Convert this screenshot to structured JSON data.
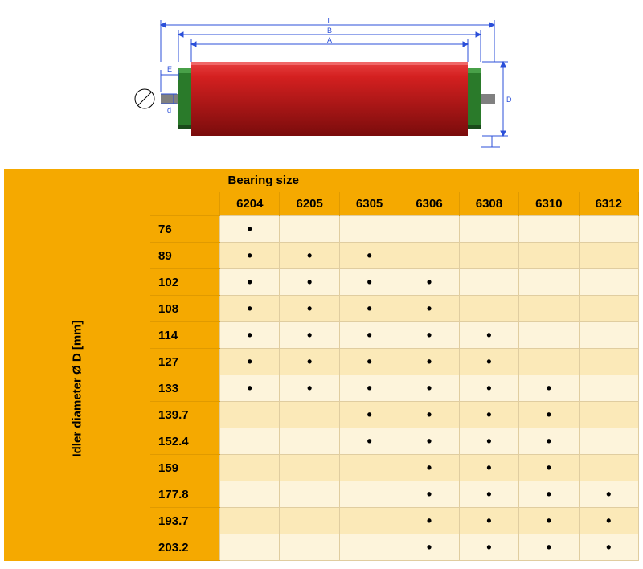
{
  "diagram": {
    "shaft_color": "#2a7a2a",
    "body_color_top": "#d42020",
    "body_color_bottom": "#8a0f0f",
    "endcap_color": "#2a7a2a",
    "dim_line_color": "#2b4fd9",
    "dim_text_color": "#2b4fd9",
    "labels": {
      "L": "L",
      "B": "B",
      "A": "A",
      "D": "D",
      "E": "E",
      "d": "d"
    }
  },
  "table": {
    "side_label": "Idler diameter Ø D [mm]",
    "header_title": "Bearing size",
    "columns": [
      "6204",
      "6205",
      "6305",
      "6306",
      "6308",
      "6310",
      "6312"
    ],
    "rows": [
      {
        "label": "76",
        "dots": [
          true,
          false,
          false,
          false,
          false,
          false,
          false
        ]
      },
      {
        "label": "89",
        "dots": [
          true,
          true,
          true,
          false,
          false,
          false,
          false
        ]
      },
      {
        "label": "102",
        "dots": [
          true,
          true,
          true,
          true,
          false,
          false,
          false
        ]
      },
      {
        "label": "108",
        "dots": [
          true,
          true,
          true,
          true,
          false,
          false,
          false
        ]
      },
      {
        "label": "114",
        "dots": [
          true,
          true,
          true,
          true,
          true,
          false,
          false
        ]
      },
      {
        "label": "127",
        "dots": [
          true,
          true,
          true,
          true,
          true,
          false,
          false
        ]
      },
      {
        "label": "133",
        "dots": [
          true,
          true,
          true,
          true,
          true,
          true,
          false
        ]
      },
      {
        "label": "139.7",
        "dots": [
          false,
          false,
          true,
          true,
          true,
          true,
          false
        ]
      },
      {
        "label": "152.4",
        "dots": [
          false,
          false,
          true,
          true,
          true,
          true,
          false
        ]
      },
      {
        "label": "159",
        "dots": [
          false,
          false,
          false,
          true,
          true,
          true,
          false
        ]
      },
      {
        "label": "177.8",
        "dots": [
          false,
          false,
          false,
          true,
          true,
          true,
          true
        ]
      },
      {
        "label": "193.7",
        "dots": [
          false,
          false,
          false,
          true,
          true,
          true,
          true
        ]
      },
      {
        "label": "203.2",
        "dots": [
          false,
          false,
          false,
          true,
          true,
          true,
          true
        ]
      }
    ],
    "header_bg": "#f5a900",
    "header_border": "#e09a00",
    "row_odd_bg": "#fdf4db",
    "row_even_bg": "#fbe9b8",
    "cell_border": "#e0cda0",
    "text_color": "#000000",
    "fontsize": 15
  }
}
